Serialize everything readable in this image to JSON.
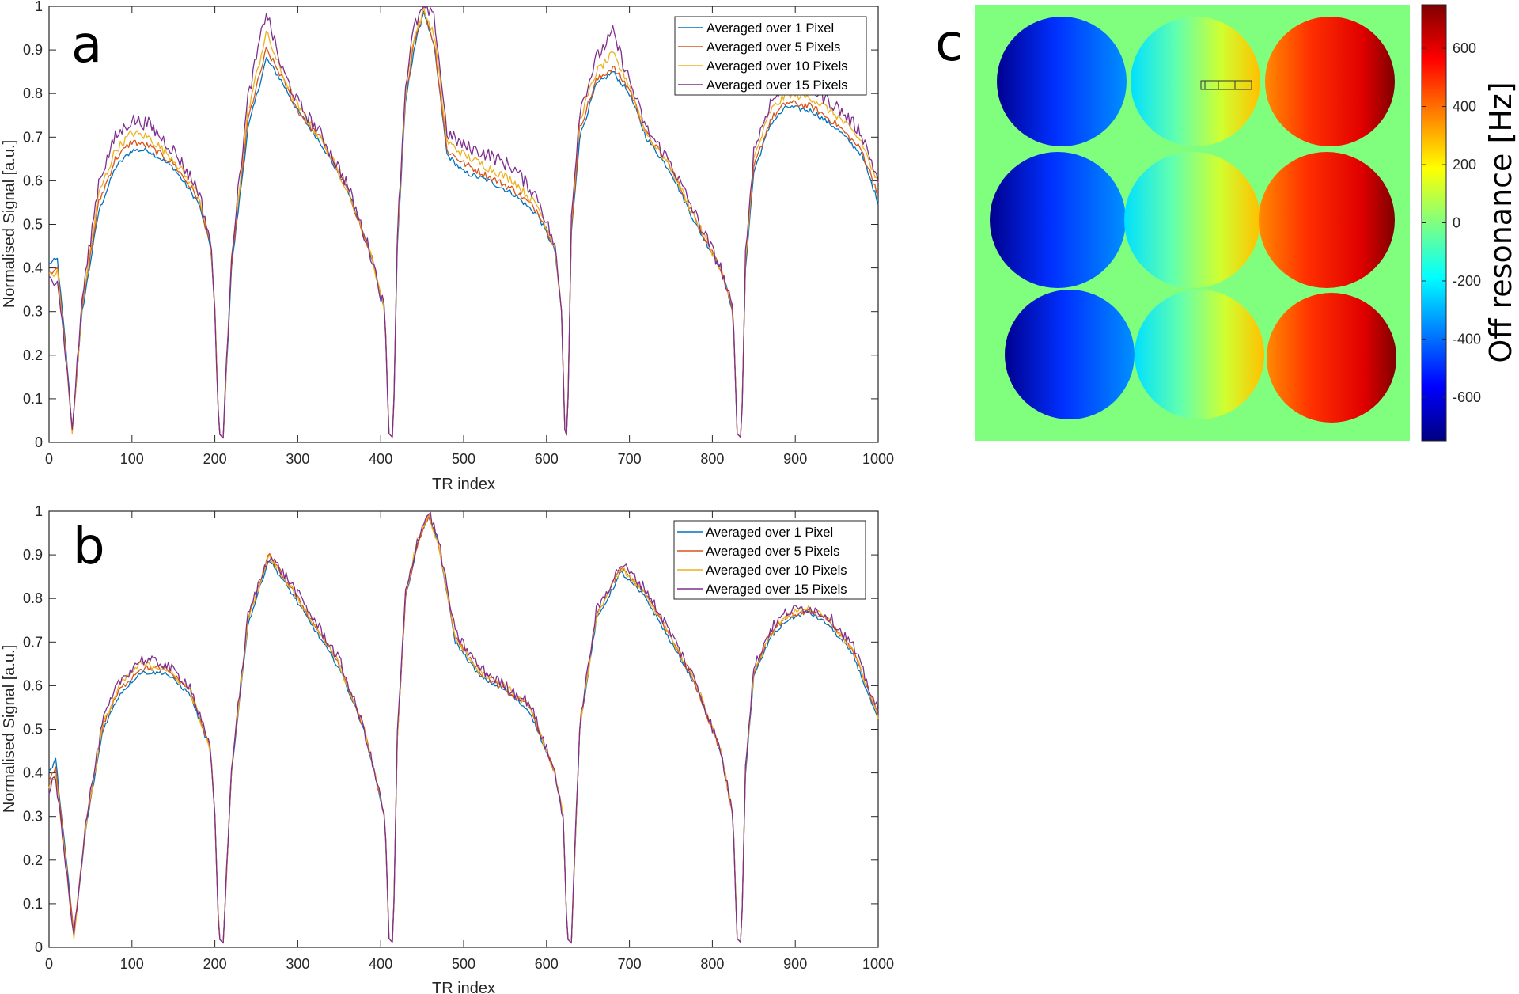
{
  "chart_data": [
    {
      "panel": "a",
      "type": "line",
      "xlabel": "TR index",
      "ylabel": "Normalised Signal [a.u.]",
      "xlim": [
        0,
        1000
      ],
      "ylim": [
        0,
        1
      ],
      "xticks": [
        "0",
        "100",
        "200",
        "300",
        "400",
        "500",
        "600",
        "700",
        "800",
        "900",
        "1000"
      ],
      "yticks": [
        "0",
        "0.1",
        "0.2",
        "0.3",
        "0.4",
        "0.5",
        "0.6",
        "0.7",
        "0.8",
        "0.9",
        "1"
      ],
      "grid": false,
      "legend": "top-right",
      "x": [
        0,
        10,
        20,
        28,
        40,
        60,
        80,
        100,
        120,
        150,
        180,
        195,
        200,
        205,
        210,
        220,
        240,
        262,
        280,
        300,
        330,
        360,
        390,
        405,
        410,
        415,
        420,
        430,
        440,
        452,
        465,
        480,
        500,
        530,
        560,
        590,
        610,
        618,
        622,
        625,
        630,
        640,
        660,
        680,
        700,
        720,
        750,
        780,
        810,
        825,
        830,
        835,
        840,
        850,
        870,
        890,
        920,
        950,
        980,
        1000
      ],
      "series": [
        {
          "name": "Averaged over 1 Pixel",
          "color": "#0072BD",
          "values": [
            0.41,
            0.42,
            0.22,
            0.03,
            0.3,
            0.53,
            0.63,
            0.67,
            0.67,
            0.63,
            0.55,
            0.45,
            0.3,
            0.02,
            0.01,
            0.4,
            0.72,
            0.88,
            0.83,
            0.76,
            0.68,
            0.58,
            0.42,
            0.3,
            0.02,
            0.01,
            0.45,
            0.78,
            0.9,
            0.99,
            0.9,
            0.66,
            0.62,
            0.6,
            0.57,
            0.52,
            0.44,
            0.3,
            0.03,
            0.01,
            0.48,
            0.7,
            0.82,
            0.85,
            0.8,
            0.7,
            0.62,
            0.5,
            0.4,
            0.3,
            0.02,
            0.01,
            0.4,
            0.62,
            0.73,
            0.77,
            0.76,
            0.72,
            0.66,
            0.55
          ]
        },
        {
          "name": "Averaged over 5 Pixels",
          "color": "#D95319",
          "values": [
            0.39,
            0.4,
            0.21,
            0.03,
            0.31,
            0.55,
            0.65,
            0.69,
            0.68,
            0.64,
            0.56,
            0.45,
            0.3,
            0.02,
            0.01,
            0.41,
            0.74,
            0.9,
            0.84,
            0.76,
            0.69,
            0.58,
            0.42,
            0.3,
            0.02,
            0.01,
            0.46,
            0.79,
            0.92,
            0.99,
            0.91,
            0.67,
            0.64,
            0.61,
            0.58,
            0.53,
            0.45,
            0.3,
            0.03,
            0.01,
            0.49,
            0.72,
            0.83,
            0.86,
            0.81,
            0.71,
            0.63,
            0.51,
            0.4,
            0.3,
            0.02,
            0.01,
            0.41,
            0.63,
            0.74,
            0.78,
            0.77,
            0.73,
            0.67,
            0.57
          ]
        },
        {
          "name": "Averaged over 10 Pixels",
          "color": "#EDB120",
          "values": [
            0.38,
            0.39,
            0.2,
            0.02,
            0.32,
            0.57,
            0.67,
            0.71,
            0.7,
            0.65,
            0.57,
            0.46,
            0.3,
            0.02,
            0.01,
            0.42,
            0.76,
            0.94,
            0.85,
            0.77,
            0.69,
            0.58,
            0.42,
            0.3,
            0.02,
            0.01,
            0.47,
            0.8,
            0.93,
            0.99,
            0.93,
            0.69,
            0.66,
            0.63,
            0.6,
            0.54,
            0.45,
            0.3,
            0.03,
            0.01,
            0.5,
            0.74,
            0.85,
            0.89,
            0.82,
            0.71,
            0.63,
            0.51,
            0.4,
            0.3,
            0.02,
            0.01,
            0.42,
            0.65,
            0.76,
            0.8,
            0.79,
            0.75,
            0.69,
            0.59
          ]
        },
        {
          "name": "Averaged over 15 Pixels",
          "color": "#7E2F8E",
          "values": [
            0.37,
            0.38,
            0.2,
            0.03,
            0.33,
            0.6,
            0.7,
            0.74,
            0.73,
            0.67,
            0.58,
            0.46,
            0.3,
            0.02,
            0.01,
            0.43,
            0.79,
            0.99,
            0.86,
            0.78,
            0.7,
            0.59,
            0.42,
            0.3,
            0.02,
            0.01,
            0.48,
            0.82,
            0.95,
            1.0,
            0.97,
            0.71,
            0.68,
            0.66,
            0.63,
            0.56,
            0.45,
            0.3,
            0.03,
            0.01,
            0.52,
            0.76,
            0.88,
            0.94,
            0.83,
            0.72,
            0.64,
            0.52,
            0.4,
            0.3,
            0.02,
            0.01,
            0.43,
            0.67,
            0.78,
            0.82,
            0.81,
            0.77,
            0.71,
            0.6
          ]
        }
      ]
    },
    {
      "panel": "b",
      "type": "line",
      "xlabel": "TR index",
      "ylabel": "Normalised Signal [a.u.]",
      "xlim": [
        0,
        1000
      ],
      "ylim": [
        0,
        1
      ],
      "xticks": [
        "0",
        "100",
        "200",
        "300",
        "400",
        "500",
        "600",
        "700",
        "800",
        "900",
        "1000"
      ],
      "yticks": [
        "0",
        "0.1",
        "0.2",
        "0.3",
        "0.4",
        "0.5",
        "0.6",
        "0.7",
        "0.8",
        "0.9",
        "1"
      ],
      "grid": false,
      "legend": "top-right",
      "x": [
        0,
        8,
        18,
        30,
        45,
        65,
        85,
        110,
        140,
        170,
        195,
        200,
        205,
        210,
        220,
        240,
        265,
        290,
        320,
        350,
        380,
        405,
        410,
        415,
        420,
        430,
        445,
        458,
        470,
        490,
        520,
        550,
        580,
        610,
        620,
        625,
        630,
        640,
        660,
        690,
        720,
        750,
        780,
        810,
        825,
        830,
        835,
        840,
        850,
        870,
        890,
        915,
        940,
        970,
        1000
      ],
      "series": [
        {
          "name": "Averaged over 1 Pixel",
          "color": "#0072BD",
          "values": [
            0.4,
            0.43,
            0.25,
            0.03,
            0.28,
            0.5,
            0.58,
            0.63,
            0.63,
            0.58,
            0.45,
            0.3,
            0.02,
            0.01,
            0.4,
            0.74,
            0.89,
            0.82,
            0.73,
            0.64,
            0.5,
            0.3,
            0.02,
            0.01,
            0.48,
            0.8,
            0.93,
            0.99,
            0.92,
            0.7,
            0.62,
            0.59,
            0.54,
            0.4,
            0.3,
            0.02,
            0.01,
            0.5,
            0.75,
            0.86,
            0.8,
            0.7,
            0.6,
            0.45,
            0.3,
            0.02,
            0.01,
            0.4,
            0.62,
            0.71,
            0.75,
            0.77,
            0.74,
            0.67,
            0.52
          ]
        },
        {
          "name": "Averaged over 5 Pixels",
          "color": "#D95319",
          "values": [
            0.38,
            0.41,
            0.24,
            0.03,
            0.29,
            0.51,
            0.59,
            0.64,
            0.64,
            0.59,
            0.45,
            0.3,
            0.02,
            0.01,
            0.4,
            0.75,
            0.9,
            0.83,
            0.74,
            0.65,
            0.5,
            0.3,
            0.02,
            0.01,
            0.48,
            0.8,
            0.93,
            0.99,
            0.92,
            0.71,
            0.63,
            0.59,
            0.55,
            0.4,
            0.3,
            0.02,
            0.01,
            0.5,
            0.76,
            0.87,
            0.81,
            0.71,
            0.6,
            0.45,
            0.3,
            0.02,
            0.01,
            0.41,
            0.63,
            0.72,
            0.76,
            0.77,
            0.75,
            0.68,
            0.53
          ]
        },
        {
          "name": "Averaged over 10 Pixels",
          "color": "#EDB120",
          "values": [
            0.37,
            0.4,
            0.23,
            0.02,
            0.29,
            0.51,
            0.6,
            0.65,
            0.64,
            0.59,
            0.45,
            0.3,
            0.02,
            0.01,
            0.41,
            0.75,
            0.9,
            0.83,
            0.74,
            0.65,
            0.5,
            0.3,
            0.02,
            0.01,
            0.48,
            0.81,
            0.94,
            0.99,
            0.92,
            0.71,
            0.63,
            0.6,
            0.55,
            0.4,
            0.3,
            0.02,
            0.01,
            0.5,
            0.76,
            0.87,
            0.81,
            0.71,
            0.61,
            0.45,
            0.3,
            0.02,
            0.01,
            0.41,
            0.63,
            0.72,
            0.76,
            0.78,
            0.75,
            0.68,
            0.53
          ]
        },
        {
          "name": "Averaged over 15 Pixels",
          "color": "#7E2F8E",
          "values": [
            0.36,
            0.39,
            0.22,
            0.03,
            0.3,
            0.52,
            0.61,
            0.66,
            0.65,
            0.6,
            0.45,
            0.3,
            0.02,
            0.01,
            0.41,
            0.76,
            0.9,
            0.84,
            0.75,
            0.66,
            0.5,
            0.3,
            0.02,
            0.01,
            0.49,
            0.81,
            0.94,
            1.0,
            0.93,
            0.72,
            0.64,
            0.6,
            0.56,
            0.4,
            0.3,
            0.02,
            0.01,
            0.51,
            0.77,
            0.88,
            0.82,
            0.72,
            0.61,
            0.45,
            0.3,
            0.02,
            0.01,
            0.42,
            0.64,
            0.73,
            0.77,
            0.78,
            0.76,
            0.69,
            0.54
          ]
        }
      ]
    },
    {
      "panel": "c",
      "type": "heatmap",
      "colorbar_label": "Off resonance [Hz]",
      "colorbar_range": [
        -750,
        750
      ],
      "colorbar_ticks": [
        "600",
        "400",
        "200",
        "0",
        "-200",
        "-400",
        "-600"
      ],
      "colorbar_tick_values": [
        600,
        400,
        200,
        0,
        -200,
        -400,
        -600
      ],
      "background_value": 100,
      "grid_rows": 3,
      "grid_cols": 3,
      "column_ranges_hz": [
        [
          -750,
          -250
        ],
        [
          -250,
          250
        ],
        [
          250,
          750
        ]
      ],
      "roi": "rectangle of 3 cells in top-middle disc"
    }
  ]
}
